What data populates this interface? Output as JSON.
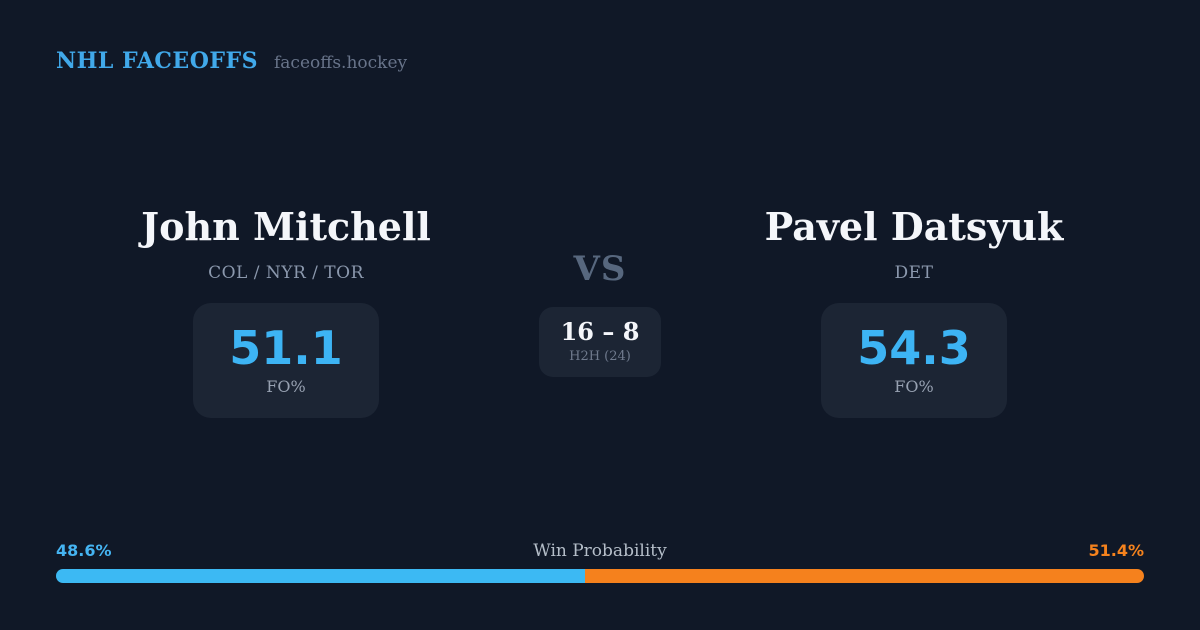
{
  "brand": {
    "title": "NHL FACEOFFS",
    "domain": "faceoffs.hockey"
  },
  "matchup": {
    "players": [
      {
        "name": "John Mitchell",
        "teams": "COL / NYR / TOR",
        "stat_value": "51.1",
        "stat_label": "FO%"
      },
      {
        "name": "Pavel Datsyuk",
        "teams": "DET",
        "stat_value": "54.3",
        "stat_label": "FO%"
      }
    ],
    "vs_label": "VS",
    "h2h": {
      "score": "16 – 8",
      "label": "H2H (24)"
    }
  },
  "win_probability": {
    "label": "Win Probability",
    "left_pct_text": "48.6%",
    "right_pct_text": "51.4%",
    "left_value": 48.6,
    "right_value": 51.4,
    "left_color": "#3cb9f3",
    "right_color": "#f5811d"
  },
  "colors": {
    "background": "#101827",
    "card_background": "#1c2534",
    "accent_blue": "#3db4f4",
    "accent_orange": "#f5811d",
    "brand_blue": "#41a9ea"
  }
}
